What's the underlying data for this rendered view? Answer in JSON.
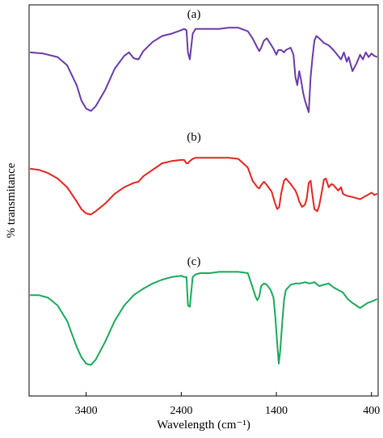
{
  "chart_data": {
    "type": "line",
    "title": "",
    "xlabel": "Wavelength (cm⁻¹)",
    "ylabel": "% transmitance",
    "x_reversed": true,
    "xlim": [
      4000,
      330
    ],
    "x_ticks": [
      3400,
      2400,
      1400,
      400
    ],
    "x_tick_labels": [
      "3400",
      "2400",
      "1400",
      "400"
    ],
    "y_ticks": false,
    "grid": false,
    "legend": "none",
    "series": [
      {
        "label": "(a)",
        "color": "#6a3aa8",
        "x": [
          3990,
          3850,
          3700,
          3600,
          3500,
          3450,
          3400,
          3350,
          3300,
          3200,
          3100,
          3000,
          2950,
          2900,
          2850,
          2800,
          2700,
          2600,
          2500,
          2400,
          2370,
          2345,
          2330,
          2310,
          2280,
          2250,
          2200,
          2100,
          2000,
          1900,
          1800,
          1700,
          1650,
          1600,
          1580,
          1560,
          1530,
          1500,
          1460,
          1430,
          1400,
          1380,
          1350,
          1320,
          1300,
          1250,
          1220,
          1200,
          1180,
          1160,
          1140,
          1120,
          1100,
          1080,
          1060,
          1040,
          1020,
          1000,
          980,
          950,
          900,
          850,
          800,
          760,
          720,
          690,
          660,
          640,
          600,
          560,
          540,
          520,
          490,
          460,
          430,
          400,
          370,
          340
        ],
        "y": [
          76,
          75,
          72,
          65,
          48,
          35,
          28,
          26,
          30,
          44,
          62,
          73,
          76,
          71,
          70,
          77,
          85,
          90,
          92,
          95,
          96,
          95,
          76,
          70,
          92,
          96,
          96,
          96,
          96,
          97,
          97,
          94,
          88,
          80,
          77,
          80,
          86,
          88,
          83,
          79,
          74,
          78,
          78,
          76,
          78,
          80,
          74,
          55,
          48,
          60,
          52,
          42,
          35,
          30,
          25,
          55,
          72,
          86,
          90,
          88,
          84,
          82,
          78,
          74,
          70,
          76,
          68,
          72,
          60,
          66,
          70,
          74,
          70,
          76,
          72,
          75,
          73,
          72
        ]
      },
      {
        "label": "(b)",
        "color": "#e32421",
        "x": [
          3990,
          3900,
          3800,
          3700,
          3600,
          3500,
          3450,
          3400,
          3350,
          3300,
          3200,
          3100,
          3000,
          2950,
          2900,
          2850,
          2800,
          2700,
          2600,
          2500,
          2400,
          2370,
          2345,
          2330,
          2310,
          2280,
          2250,
          2200,
          2100,
          2000,
          1900,
          1800,
          1700,
          1650,
          1600,
          1580,
          1560,
          1530,
          1500,
          1450,
          1420,
          1400,
          1390,
          1370,
          1350,
          1320,
          1300,
          1250,
          1200,
          1180,
          1160,
          1130,
          1100,
          1080,
          1060,
          1040,
          1020,
          1000,
          970,
          950,
          920,
          900,
          880,
          850,
          820,
          800,
          780,
          750,
          720,
          700,
          680,
          650,
          600,
          560,
          520,
          480,
          440,
          400,
          370,
          340
        ],
        "y": [
          75,
          74,
          71,
          66,
          58,
          45,
          38,
          34,
          33,
          36,
          43,
          52,
          58,
          60,
          62,
          63,
          68,
          74,
          80,
          82,
          83,
          83,
          80,
          80,
          82,
          84,
          85,
          85,
          85,
          85,
          85,
          84,
          76,
          64,
          58,
          57,
          60,
          63,
          60,
          54,
          45,
          40,
          38,
          40,
          52,
          64,
          66,
          61,
          55,
          51,
          45,
          40,
          42,
          48,
          62,
          64,
          50,
          38,
          36,
          41,
          55,
          65,
          66,
          58,
          61,
          60,
          58,
          55,
          58,
          52,
          51,
          50,
          49,
          48,
          47,
          49,
          51,
          53,
          51,
          52
        ]
      },
      {
        "label": "(c)",
        "color": "#1ba95a",
        "x": [
          3990,
          3900,
          3800,
          3700,
          3600,
          3500,
          3450,
          3400,
          3350,
          3300,
          3200,
          3100,
          3000,
          2900,
          2800,
          2700,
          2600,
          2500,
          2400,
          2370,
          2345,
          2330,
          2310,
          2280,
          2250,
          2200,
          2100,
          2000,
          1900,
          1800,
          1700,
          1650,
          1620,
          1600,
          1580,
          1560,
          1530,
          1500,
          1480,
          1460,
          1430,
          1410,
          1400,
          1390,
          1375,
          1360,
          1340,
          1320,
          1300,
          1250,
          1200,
          1150,
          1100,
          1050,
          1000,
          950,
          900,
          850,
          800,
          750,
          700,
          650,
          600,
          560,
          520,
          480,
          440,
          400,
          370,
          340
        ],
        "y": [
          78,
          78,
          76,
          70,
          58,
          38,
          30,
          25,
          24,
          28,
          42,
          58,
          70,
          78,
          83,
          87,
          90,
          92,
          93,
          92,
          92,
          70,
          69,
          92,
          94,
          95,
          95,
          96,
          96,
          96,
          95,
          84,
          77,
          74,
          77,
          85,
          87,
          86,
          84,
          82,
          76,
          60,
          50,
          40,
          25,
          35,
          55,
          74,
          82,
          86,
          87,
          87,
          88,
          87,
          88,
          85,
          86,
          87,
          84,
          82,
          80,
          75,
          72,
          70,
          68,
          70,
          72,
          73,
          74,
          75
        ]
      }
    ]
  }
}
